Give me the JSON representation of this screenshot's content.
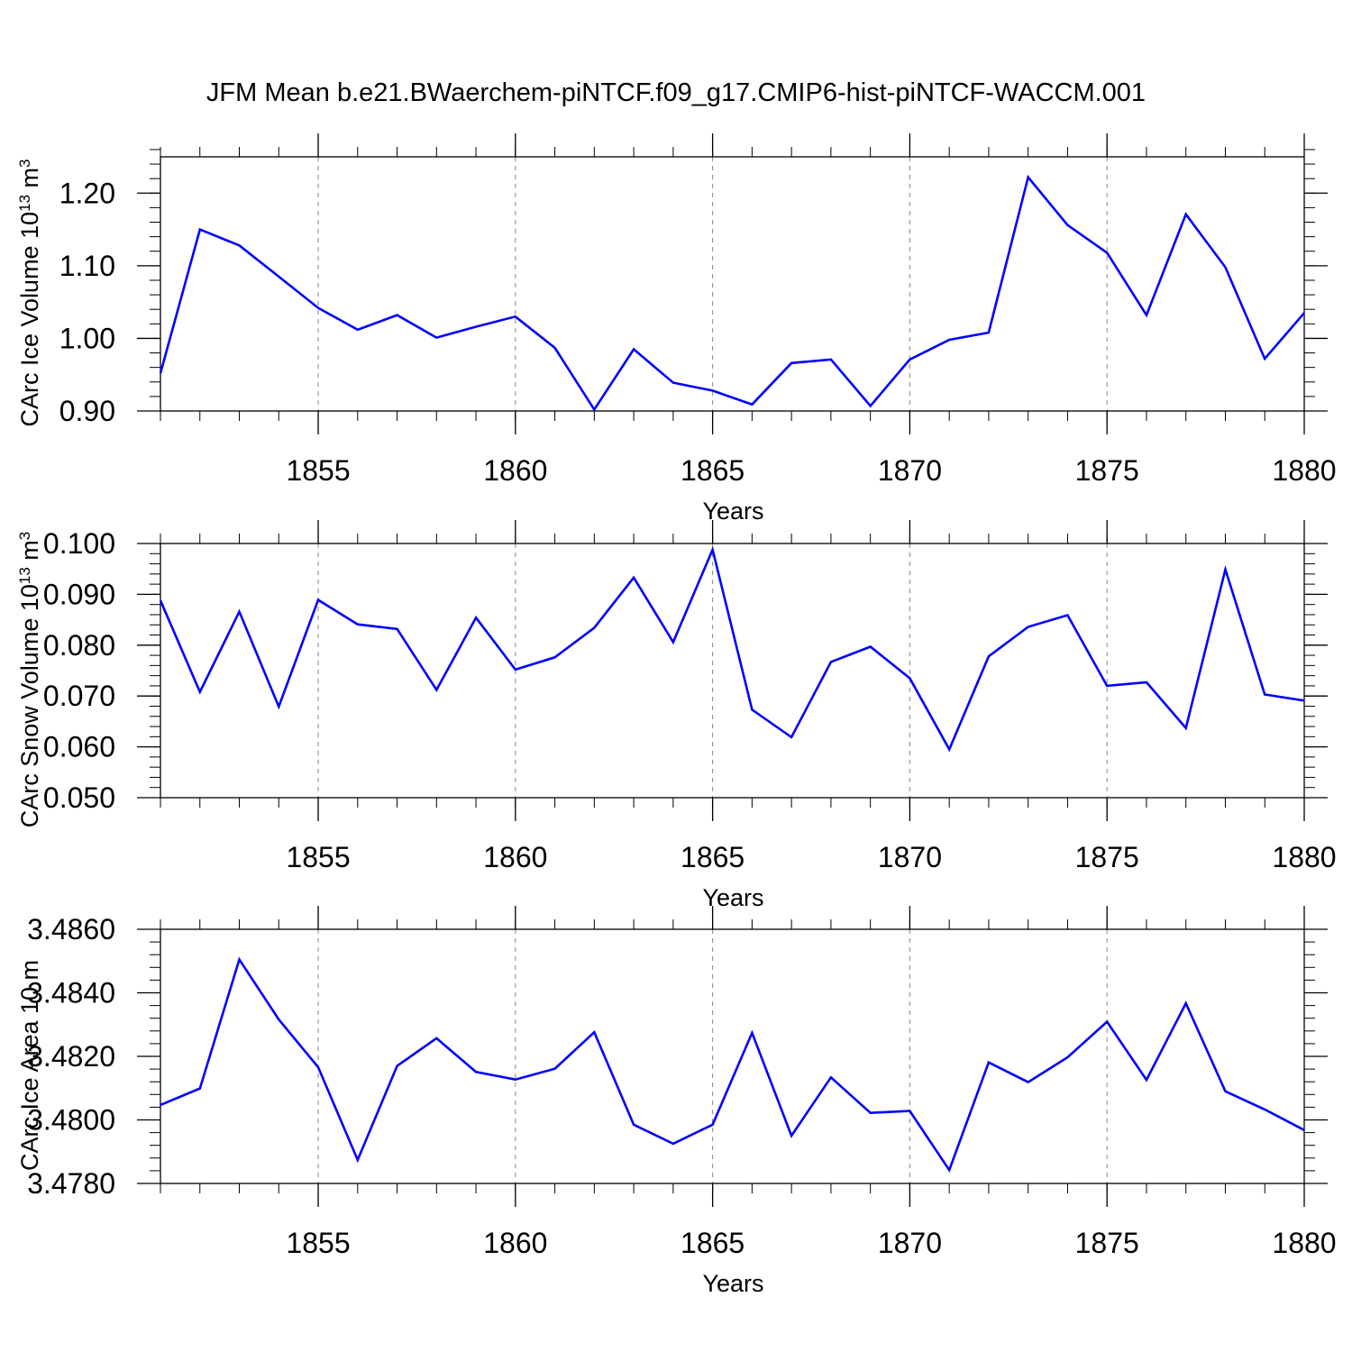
{
  "title": "JFM Mean b.e21.BWaerchem-piNTCF.f09_g17.CMIP6-hist-piNTCF-WACCM.001",
  "line_color": "#0000ff",
  "chart_data": [
    {
      "type": "line",
      "xlabel": "Years",
      "ylabel": "CArc Ice Volume 10",
      "ylabel_sup": "13",
      "ylabel_unit": " m",
      "ylabel_unit_sup": "3",
      "xlim": [
        1851,
        1880
      ],
      "ylim": [
        0.9,
        1.25
      ],
      "yticks": [
        0.9,
        1.0,
        1.1,
        1.2
      ],
      "ytick_labels": [
        "0.90",
        "1.00",
        "1.10",
        "1.20"
      ],
      "xticks": [
        1855,
        1860,
        1865,
        1870,
        1875,
        1880
      ],
      "xtick_labels": [
        "1855",
        "1860",
        "1865",
        "1870",
        "1875",
        "1880"
      ],
      "grid": "dashed vertical at labeled years",
      "series": [
        {
          "x": [
            1851,
            1852,
            1853,
            1854,
            1855,
            1856,
            1857,
            1858,
            1859,
            1860,
            1861,
            1862,
            1863,
            1864,
            1865,
            1866,
            1867,
            1868,
            1869,
            1870,
            1871,
            1872,
            1873,
            1874,
            1875,
            1876,
            1877,
            1878,
            1879,
            1880
          ],
          "values": [
            0.952,
            1.15,
            1.128,
            1.085,
            1.042,
            1.012,
            1.032,
            1.001,
            1.016,
            1.03,
            0.987,
            0.902,
            0.985,
            0.939,
            0.928,
            0.909,
            0.966,
            0.971,
            0.907,
            0.971,
            0.998,
            1.008,
            1.222,
            1.156,
            1.118,
            1.032,
            1.171,
            1.098,
            0.972,
            1.035
          ]
        }
      ]
    },
    {
      "type": "line",
      "xlabel": "Years",
      "ylabel": "CArc Snow Volume 10",
      "ylabel_sup": "13",
      "ylabel_unit": " m",
      "ylabel_unit_sup": "3",
      "xlim": [
        1851,
        1880
      ],
      "ylim": [
        0.05,
        0.1
      ],
      "yticks": [
        0.05,
        0.06,
        0.07,
        0.08,
        0.09,
        0.1
      ],
      "ytick_labels": [
        "0.050",
        "0.060",
        "0.070",
        "0.080",
        "0.090",
        "0.100"
      ],
      "xticks": [
        1855,
        1860,
        1865,
        1870,
        1875,
        1880
      ],
      "xtick_labels": [
        "1855",
        "1860",
        "1865",
        "1870",
        "1875",
        "1880"
      ],
      "grid": "dashed vertical at labeled years",
      "series": [
        {
          "x": [
            1851,
            1852,
            1853,
            1854,
            1855,
            1856,
            1857,
            1858,
            1859,
            1860,
            1861,
            1862,
            1863,
            1864,
            1865,
            1866,
            1867,
            1868,
            1869,
            1870,
            1871,
            1872,
            1873,
            1874,
            1875,
            1876,
            1877,
            1878,
            1879,
            1880
          ],
          "values": [
            0.0888,
            0.0708,
            0.0866,
            0.0679,
            0.0889,
            0.0841,
            0.0832,
            0.0712,
            0.0854,
            0.0752,
            0.0776,
            0.0834,
            0.0933,
            0.0806,
            0.0988,
            0.0673,
            0.0619,
            0.0767,
            0.0797,
            0.0735,
            0.0595,
            0.0778,
            0.0836,
            0.0859,
            0.072,
            0.0727,
            0.0637,
            0.0949,
            0.0703,
            0.0691
          ]
        }
      ]
    },
    {
      "type": "line",
      "xlabel": "Years",
      "ylabel": "CArc Ice Area 10",
      "ylabel_sup": "",
      "ylabel_unit": " m",
      "ylabel_unit_sup": "",
      "xlim": [
        1851,
        1880
      ],
      "ylim": [
        3.478,
        3.486
      ],
      "yticks": [
        3.478,
        3.48,
        3.482,
        3.484,
        3.486
      ],
      "ytick_labels": [
        "3.4780",
        "3.4800",
        "3.4820",
        "3.4840",
        "3.4860"
      ],
      "xticks": [
        1855,
        1860,
        1865,
        1870,
        1875,
        1880
      ],
      "xtick_labels": [
        "1855",
        "1860",
        "1865",
        "1870",
        "1875",
        "1880"
      ],
      "grid": "dashed vertical at labeled years",
      "series": [
        {
          "x": [
            1851,
            1852,
            1853,
            1854,
            1855,
            1856,
            1857,
            1858,
            1859,
            1860,
            1861,
            1862,
            1863,
            1864,
            1865,
            1866,
            1867,
            1868,
            1869,
            1870,
            1871,
            1872,
            1873,
            1874,
            1875,
            1876,
            1877,
            1878,
            1879,
            1880
          ],
          "values": [
            3.48047,
            3.48099,
            3.48505,
            3.48316,
            3.48166,
            3.47874,
            3.4817,
            3.48257,
            3.48151,
            3.48127,
            3.48161,
            3.48276,
            3.47985,
            3.47925,
            3.47985,
            3.48274,
            3.4795,
            3.48134,
            3.48022,
            3.48028,
            3.47842,
            3.48181,
            3.48119,
            3.48197,
            3.48309,
            3.48126,
            3.48367,
            3.4809,
            3.48033,
            3.47968
          ]
        }
      ]
    }
  ]
}
